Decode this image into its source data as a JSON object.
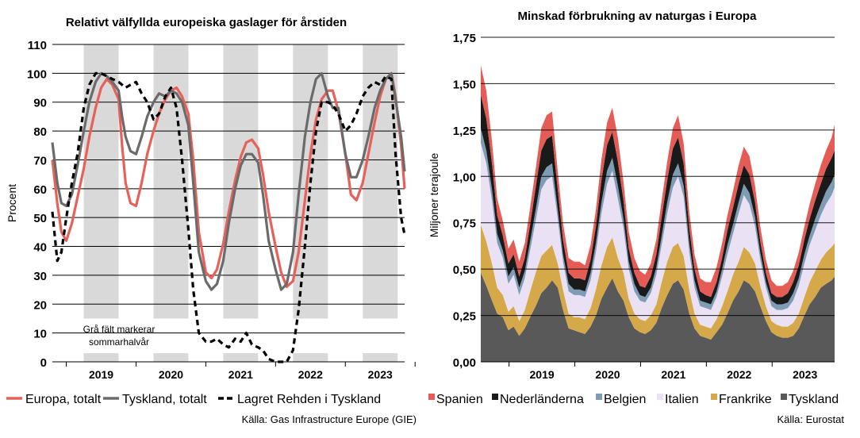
{
  "chart_data": [
    {
      "type": "line",
      "title": "Relativt välfyllda europeiska gaslager för årstiden",
      "ylabel": "Procent",
      "ylim": [
        0,
        110
      ],
      "yticks": [
        "0",
        "10",
        "20",
        "30",
        "40",
        "50",
        "60",
        "70",
        "80",
        "90",
        "100",
        "110"
      ],
      "grid": true,
      "x_range": [
        2018.8,
        2023.85
      ],
      "categories": [
        "2019",
        "2020",
        "2021",
        "2022",
        "2023"
      ],
      "shaded_periods": [
        [
          2019.25,
          2019.75
        ],
        [
          2020.25,
          2020.75
        ],
        [
          2021.25,
          2021.75
        ],
        [
          2022.25,
          2022.75
        ],
        [
          2023.25,
          2023.75
        ]
      ],
      "annotation": [
        "Grå fält markerar",
        "sommarhalvår"
      ],
      "legend_position": "bottom",
      "series": [
        {
          "name": "Europa, totalt",
          "color": "#e8605a",
          "dash": "none",
          "x": [
            2018.8,
            2018.87,
            2018.93,
            2019.0,
            2019.08,
            2019.16,
            2019.25,
            2019.33,
            2019.42,
            2019.5,
            2019.58,
            2019.66,
            2019.75,
            2019.8,
            2019.85,
            2019.92,
            2020.0,
            2020.08,
            2020.16,
            2020.25,
            2020.33,
            2020.42,
            2020.5,
            2020.58,
            2020.66,
            2020.75,
            2020.82,
            2020.9,
            2021.0,
            2021.08,
            2021.16,
            2021.25,
            2021.33,
            2021.42,
            2021.5,
            2021.58,
            2021.66,
            2021.75,
            2021.82,
            2021.9,
            2022.0,
            2022.08,
            2022.16,
            2022.25,
            2022.33,
            2022.42,
            2022.5,
            2022.58,
            2022.66,
            2022.75,
            2022.82,
            2022.9,
            2023.0,
            2023.08,
            2023.16,
            2023.25,
            2023.33,
            2023.42,
            2023.5,
            2023.58,
            2023.66,
            2023.72,
            2023.8,
            2023.85
          ],
          "y": [
            70,
            55,
            45,
            42,
            48,
            57,
            67,
            78,
            88,
            95,
            98,
            96,
            91,
            75,
            62,
            55,
            54,
            62,
            72,
            80,
            86,
            91,
            94,
            95,
            92,
            86,
            70,
            45,
            31,
            29,
            32,
            41,
            52,
            63,
            71,
            76,
            77,
            74,
            65,
            52,
            40,
            31,
            26,
            28,
            38,
            56,
            72,
            84,
            91,
            94,
            94,
            87,
            72,
            58,
            56,
            62,
            72,
            83,
            92,
            98,
            100,
            92,
            75,
            60
          ]
        },
        {
          "name": "Tyskland, totalt",
          "color": "#6b6b6b",
          "dash": "none",
          "x": [
            2018.8,
            2018.87,
            2018.93,
            2019.0,
            2019.08,
            2019.16,
            2019.25,
            2019.33,
            2019.42,
            2019.5,
            2019.58,
            2019.66,
            2019.75,
            2019.8,
            2019.85,
            2019.92,
            2020.0,
            2020.08,
            2020.16,
            2020.25,
            2020.33,
            2020.42,
            2020.5,
            2020.58,
            2020.66,
            2020.75,
            2020.82,
            2020.9,
            2021.0,
            2021.08,
            2021.16,
            2021.25,
            2021.33,
            2021.42,
            2021.5,
            2021.58,
            2021.66,
            2021.75,
            2021.82,
            2021.9,
            2022.0,
            2022.08,
            2022.16,
            2022.25,
            2022.33,
            2022.42,
            2022.5,
            2022.58,
            2022.66,
            2022.75,
            2022.82,
            2022.9,
            2023.0,
            2023.08,
            2023.16,
            2023.25,
            2023.33,
            2023.42,
            2023.5,
            2023.58,
            2023.66,
            2023.72,
            2023.8,
            2023.85
          ],
          "y": [
            76,
            62,
            55,
            54,
            58,
            68,
            80,
            90,
            97,
            100,
            99,
            97,
            94,
            85,
            78,
            73,
            72,
            78,
            85,
            90,
            93,
            92,
            94,
            93,
            90,
            82,
            62,
            38,
            28,
            25,
            27,
            35,
            48,
            60,
            68,
            72,
            72,
            69,
            58,
            42,
            32,
            25,
            27,
            38,
            58,
            78,
            90,
            98,
            100,
            92,
            88,
            88,
            72,
            64,
            64,
            70,
            78,
            88,
            94,
            98,
            100,
            91,
            78,
            66
          ]
        },
        {
          "name": "Lagret Rehden i Tyskland",
          "color": "#000000",
          "dash": "7,5",
          "x": [
            2018.8,
            2018.87,
            2018.93,
            2019.0,
            2019.08,
            2019.16,
            2019.25,
            2019.33,
            2019.42,
            2019.5,
            2019.58,
            2019.66,
            2019.75,
            2019.8,
            2019.85,
            2019.92,
            2020.0,
            2020.08,
            2020.16,
            2020.25,
            2020.33,
            2020.42,
            2020.5,
            2020.58,
            2020.66,
            2020.75,
            2020.82,
            2020.9,
            2021.0,
            2021.08,
            2021.16,
            2021.25,
            2021.33,
            2021.42,
            2021.5,
            2021.58,
            2021.66,
            2021.75,
            2021.82,
            2021.9,
            2022.0,
            2022.08,
            2022.16,
            2022.25,
            2022.33,
            2022.42,
            2022.5,
            2022.58,
            2022.66,
            2022.75,
            2022.82,
            2022.9,
            2023.0,
            2023.08,
            2023.16,
            2023.25,
            2023.33,
            2023.42,
            2023.5,
            2023.58,
            2023.66,
            2023.72,
            2023.8,
            2023.85
          ],
          "y": [
            52,
            35,
            38,
            50,
            62,
            72,
            88,
            96,
            100,
            100,
            99,
            98,
            97,
            96,
            95,
            96,
            97,
            93,
            90,
            84,
            86,
            92,
            95,
            88,
            70,
            46,
            25,
            10,
            7,
            7,
            8,
            6,
            5,
            8,
            7,
            10,
            6,
            5,
            4,
            1,
            0,
            0,
            0,
            4,
            18,
            40,
            62,
            80,
            90,
            90,
            89,
            86,
            80,
            82,
            86,
            92,
            95,
            97,
            96,
            99,
            98,
            72,
            50,
            44
          ]
        }
      ]
    },
    {
      "type": "area",
      "title": "Minskad förbrukning av naturgas i Europa",
      "ylabel": "Miljoner terajoule",
      "ylim": [
        0,
        1.75
      ],
      "yticks": [
        "0,00",
        "0,25",
        "0,50",
        "0,75",
        "1,00",
        "1,25",
        "1,50",
        "1,75"
      ],
      "grid": true,
      "stacked": true,
      "x_range": [
        2018.54,
        2023.92
      ],
      "categories": [
        "2019",
        "2020",
        "2021",
        "2022",
        "2023"
      ],
      "x": [
        2018.54,
        2018.625,
        2018.71,
        2018.79,
        2018.875,
        2018.96,
        2019.04,
        2019.125,
        2019.21,
        2019.29,
        2019.375,
        2019.46,
        2019.54,
        2019.625,
        2019.71,
        2019.79,
        2019.875,
        2019.96,
        2020.04,
        2020.125,
        2020.21,
        2020.29,
        2020.375,
        2020.46,
        2020.54,
        2020.625,
        2020.71,
        2020.79,
        2020.875,
        2020.96,
        2021.04,
        2021.125,
        2021.21,
        2021.29,
        2021.375,
        2021.46,
        2021.54,
        2021.625,
        2021.71,
        2021.79,
        2021.875,
        2021.96,
        2022.04,
        2022.125,
        2022.21,
        2022.29,
        2022.375,
        2022.46,
        2022.54,
        2022.625,
        2022.71,
        2022.79,
        2022.875,
        2022.96,
        2023.04,
        2023.125,
        2023.21,
        2023.29,
        2023.375,
        2023.46,
        2023.54,
        2023.625,
        2023.71,
        2023.79,
        2023.875,
        2023.92
      ],
      "legend_position": "bottom",
      "series": [
        {
          "name": "Tyskland",
          "color": "#595959",
          "values": [
            0.48,
            0.41,
            0.33,
            0.26,
            0.24,
            0.17,
            0.19,
            0.14,
            0.18,
            0.24,
            0.3,
            0.37,
            0.4,
            0.44,
            0.4,
            0.28,
            0.18,
            0.17,
            0.16,
            0.15,
            0.19,
            0.25,
            0.34,
            0.4,
            0.45,
            0.38,
            0.33,
            0.24,
            0.18,
            0.16,
            0.15,
            0.17,
            0.21,
            0.29,
            0.36,
            0.42,
            0.44,
            0.39,
            0.26,
            0.18,
            0.14,
            0.13,
            0.12,
            0.16,
            0.2,
            0.26,
            0.33,
            0.38,
            0.44,
            0.42,
            0.38,
            0.3,
            0.22,
            0.16,
            0.14,
            0.13,
            0.13,
            0.14,
            0.18,
            0.25,
            0.31,
            0.35,
            0.4,
            0.42,
            0.44,
            0.46
          ]
        },
        {
          "name": "Frankrike",
          "color": "#d5a84a",
          "values": [
            0.26,
            0.24,
            0.2,
            0.14,
            0.12,
            0.1,
            0.11,
            0.08,
            0.1,
            0.14,
            0.18,
            0.2,
            0.2,
            0.19,
            0.13,
            0.11,
            0.08,
            0.07,
            0.08,
            0.08,
            0.1,
            0.14,
            0.18,
            0.22,
            0.22,
            0.18,
            0.15,
            0.1,
            0.08,
            0.07,
            0.07,
            0.08,
            0.1,
            0.14,
            0.18,
            0.2,
            0.2,
            0.18,
            0.13,
            0.08,
            0.06,
            0.06,
            0.06,
            0.07,
            0.1,
            0.12,
            0.14,
            0.16,
            0.18,
            0.17,
            0.15,
            0.11,
            0.08,
            0.06,
            0.06,
            0.06,
            0.06,
            0.07,
            0.08,
            0.1,
            0.12,
            0.14,
            0.15,
            0.17,
            0.18,
            0.18
          ]
        },
        {
          "name": "Italien",
          "color": "#ebe1f5",
          "values": [
            0.44,
            0.42,
            0.34,
            0.24,
            0.2,
            0.15,
            0.17,
            0.14,
            0.17,
            0.22,
            0.28,
            0.36,
            0.38,
            0.37,
            0.24,
            0.15,
            0.12,
            0.12,
            0.12,
            0.12,
            0.15,
            0.2,
            0.28,
            0.34,
            0.36,
            0.32,
            0.24,
            0.16,
            0.12,
            0.1,
            0.1,
            0.12,
            0.16,
            0.2,
            0.26,
            0.32,
            0.36,
            0.32,
            0.2,
            0.14,
            0.1,
            0.1,
            0.1,
            0.12,
            0.16,
            0.2,
            0.22,
            0.26,
            0.28,
            0.26,
            0.2,
            0.14,
            0.1,
            0.08,
            0.08,
            0.09,
            0.1,
            0.12,
            0.15,
            0.18,
            0.2,
            0.22,
            0.24,
            0.26,
            0.28,
            0.3
          ]
        },
        {
          "name": "Belgien",
          "color": "#7f9cb5",
          "values": [
            0.08,
            0.07,
            0.06,
            0.05,
            0.04,
            0.04,
            0.04,
            0.04,
            0.04,
            0.05,
            0.06,
            0.07,
            0.07,
            0.07,
            0.05,
            0.04,
            0.04,
            0.03,
            0.03,
            0.03,
            0.04,
            0.05,
            0.06,
            0.07,
            0.07,
            0.07,
            0.05,
            0.04,
            0.04,
            0.03,
            0.03,
            0.03,
            0.04,
            0.05,
            0.06,
            0.07,
            0.07,
            0.06,
            0.05,
            0.04,
            0.03,
            0.03,
            0.03,
            0.03,
            0.04,
            0.05,
            0.05,
            0.06,
            0.06,
            0.06,
            0.05,
            0.04,
            0.03,
            0.03,
            0.03,
            0.03,
            0.03,
            0.04,
            0.04,
            0.05,
            0.05,
            0.06,
            0.06,
            0.07,
            0.07,
            0.07
          ]
        },
        {
          "name": "Nederländerna",
          "color": "#1a1a1a",
          "values": [
            0.18,
            0.17,
            0.14,
            0.1,
            0.08,
            0.07,
            0.07,
            0.06,
            0.07,
            0.09,
            0.12,
            0.14,
            0.15,
            0.15,
            0.11,
            0.08,
            0.06,
            0.06,
            0.06,
            0.06,
            0.07,
            0.09,
            0.12,
            0.14,
            0.14,
            0.13,
            0.1,
            0.07,
            0.06,
            0.05,
            0.05,
            0.06,
            0.07,
            0.1,
            0.12,
            0.14,
            0.14,
            0.12,
            0.08,
            0.06,
            0.05,
            0.04,
            0.04,
            0.05,
            0.06,
            0.08,
            0.09,
            0.1,
            0.1,
            0.1,
            0.08,
            0.06,
            0.05,
            0.04,
            0.04,
            0.04,
            0.05,
            0.06,
            0.07,
            0.08,
            0.09,
            0.1,
            0.11,
            0.12,
            0.13,
            0.13
          ]
        },
        {
          "name": "Spanien",
          "color": "#e55b55",
          "values": [
            0.16,
            0.15,
            0.12,
            0.09,
            0.08,
            0.08,
            0.08,
            0.08,
            0.08,
            0.09,
            0.1,
            0.12,
            0.13,
            0.13,
            0.1,
            0.09,
            0.08,
            0.09,
            0.09,
            0.08,
            0.08,
            0.09,
            0.11,
            0.12,
            0.13,
            0.13,
            0.1,
            0.09,
            0.08,
            0.08,
            0.07,
            0.07,
            0.08,
            0.09,
            0.1,
            0.11,
            0.12,
            0.11,
            0.09,
            0.08,
            0.07,
            0.07,
            0.08,
            0.08,
            0.08,
            0.08,
            0.09,
            0.1,
            0.1,
            0.1,
            0.09,
            0.08,
            0.07,
            0.07,
            0.06,
            0.06,
            0.06,
            0.06,
            0.07,
            0.07,
            0.08,
            0.09,
            0.1,
            0.1,
            0.11,
            0.14
          ]
        }
      ]
    }
  ],
  "sources": {
    "left": "Källa: Gas Infrastructure Europe (GIE)",
    "right": "Källa: Eurostat"
  }
}
